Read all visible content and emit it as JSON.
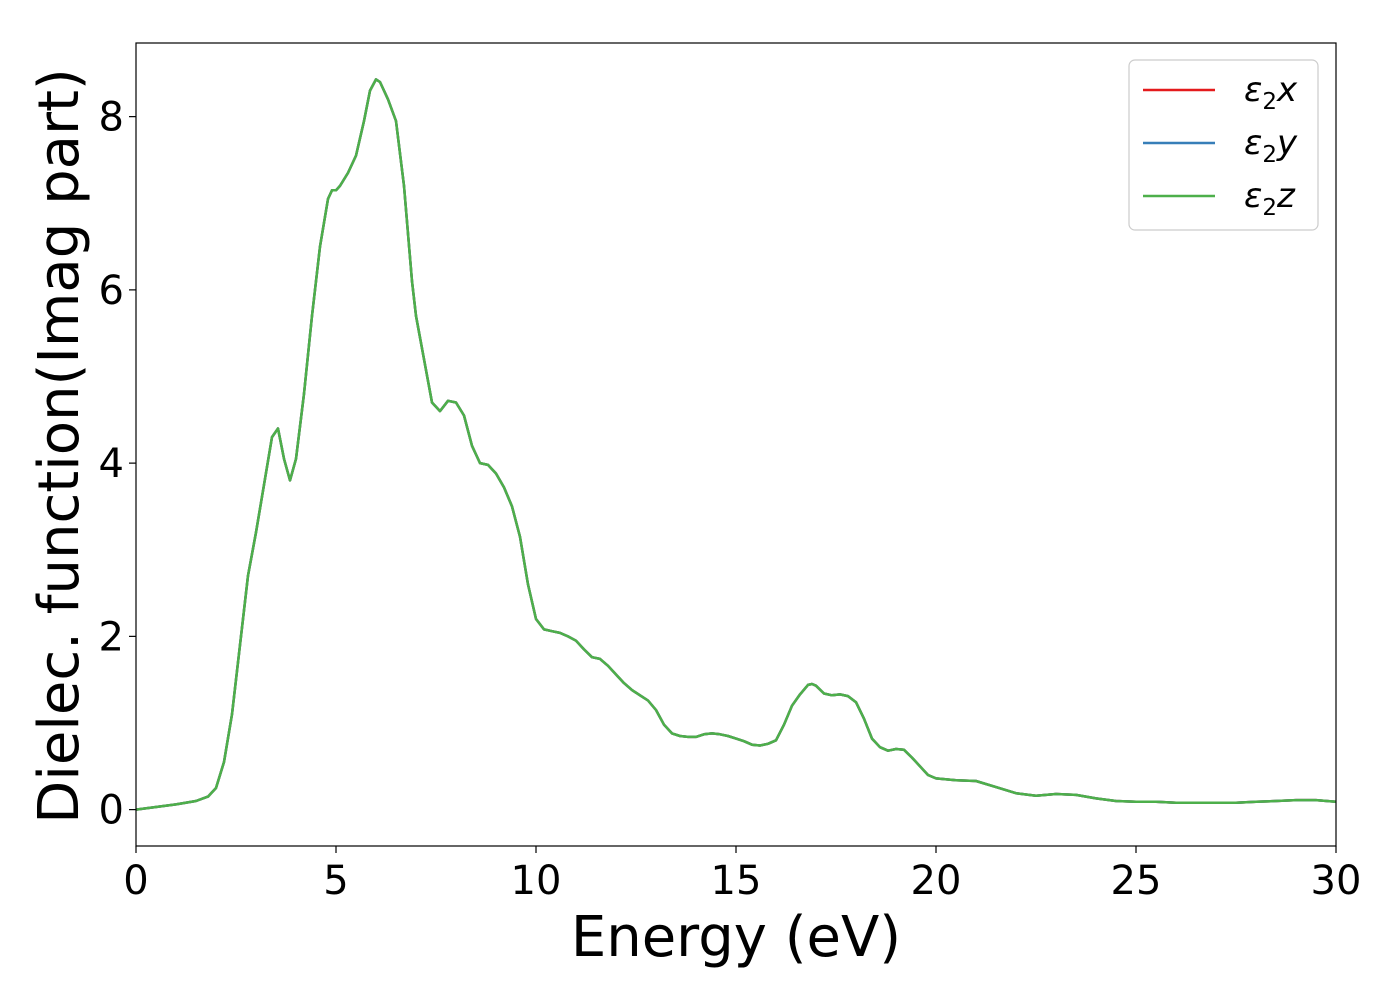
{
  "chart_data": {
    "type": "line",
    "xlabel": "Energy (eV)",
    "ylabel": "Dielec. function(Imag part)",
    "xlim": [
      0,
      30
    ],
    "ylim": [
      -0.42,
      8.85
    ],
    "xticks": [
      0,
      5,
      10,
      15,
      20,
      25,
      30
    ],
    "xtick_labels": [
      "0",
      "5",
      "10",
      "15",
      "20",
      "25",
      "30"
    ],
    "yticks": [
      0,
      2,
      4,
      6,
      8
    ],
    "ytick_labels": [
      "0",
      "2",
      "4",
      "6",
      "8"
    ],
    "grid": false,
    "legend": {
      "placement": "top-right"
    },
    "series": [
      {
        "name": "ε2x",
        "label_main": "ε",
        "label_sub": "2",
        "label_axis": "x",
        "color": "#e41a1c"
      },
      {
        "name": "ε2y",
        "label_main": "ε",
        "label_sub": "2",
        "label_axis": "y",
        "color": "#377eb8"
      },
      {
        "name": "ε2z",
        "label_main": "ε",
        "label_sub": "2",
        "label_axis": "z",
        "color": "#4daf4a"
      }
    ],
    "x": [
      0,
      0.5,
      1,
      1.5,
      1.8,
      2,
      2.2,
      2.4,
      2.6,
      2.8,
      3,
      3.2,
      3.4,
      3.55,
      3.7,
      3.85,
      4,
      4.2,
      4.4,
      4.6,
      4.8,
      4.9,
      5,
      5.1,
      5.3,
      5.5,
      5.7,
      5.85,
      6,
      6.1,
      6.3,
      6.5,
      6.7,
      6.9,
      7,
      7.2,
      7.4,
      7.6,
      7.8,
      8,
      8.2,
      8.4,
      8.6,
      8.8,
      9,
      9.2,
      9.4,
      9.6,
      9.8,
      10,
      10.2,
      10.4,
      10.6,
      10.8,
      11,
      11.2,
      11.4,
      11.6,
      11.8,
      12,
      12.2,
      12.4,
      12.6,
      12.8,
      13,
      13.2,
      13.4,
      13.6,
      13.8,
      14,
      14.2,
      14.4,
      14.6,
      14.8,
      15,
      15.2,
      15.4,
      15.6,
      15.8,
      16,
      16.2,
      16.4,
      16.6,
      16.8,
      16.9,
      17,
      17.2,
      17.4,
      17.6,
      17.8,
      18,
      18.2,
      18.4,
      18.6,
      18.8,
      19,
      19.2,
      19.4,
      19.6,
      19.8,
      20,
      20.5,
      21,
      21.5,
      22,
      22.5,
      23,
      23.5,
      24,
      24.5,
      25,
      25.5,
      26,
      26.5,
      27,
      27.5,
      28,
      28.5,
      29,
      29.5,
      30
    ],
    "y": [
      0.0,
      0.03,
      0.06,
      0.1,
      0.15,
      0.25,
      0.55,
      1.1,
      1.9,
      2.7,
      3.2,
      3.75,
      4.3,
      4.4,
      4.05,
      3.8,
      4.05,
      4.8,
      5.7,
      6.5,
      7.05,
      7.15,
      7.15,
      7.2,
      7.35,
      7.55,
      7.95,
      8.3,
      8.43,
      8.4,
      8.2,
      7.95,
      7.2,
      6.1,
      5.7,
      5.2,
      4.7,
      4.6,
      4.72,
      4.7,
      4.55,
      4.2,
      4.0,
      3.98,
      3.88,
      3.72,
      3.5,
      3.15,
      2.6,
      2.2,
      2.08,
      2.06,
      2.04,
      2.0,
      1.95,
      1.85,
      1.76,
      1.74,
      1.66,
      1.56,
      1.46,
      1.38,
      1.32,
      1.26,
      1.15,
      0.98,
      0.88,
      0.85,
      0.84,
      0.84,
      0.87,
      0.88,
      0.87,
      0.85,
      0.82,
      0.79,
      0.75,
      0.74,
      0.76,
      0.8,
      0.98,
      1.2,
      1.33,
      1.44,
      1.45,
      1.43,
      1.34,
      1.32,
      1.33,
      1.31,
      1.24,
      1.05,
      0.82,
      0.72,
      0.68,
      0.7,
      0.69,
      0.6,
      0.5,
      0.4,
      0.36,
      0.34,
      0.33,
      0.26,
      0.19,
      0.16,
      0.18,
      0.17,
      0.13,
      0.1,
      0.09,
      0.09,
      0.08,
      0.08,
      0.08,
      0.08,
      0.09,
      0.1,
      0.11,
      0.11,
      0.09
    ]
  }
}
